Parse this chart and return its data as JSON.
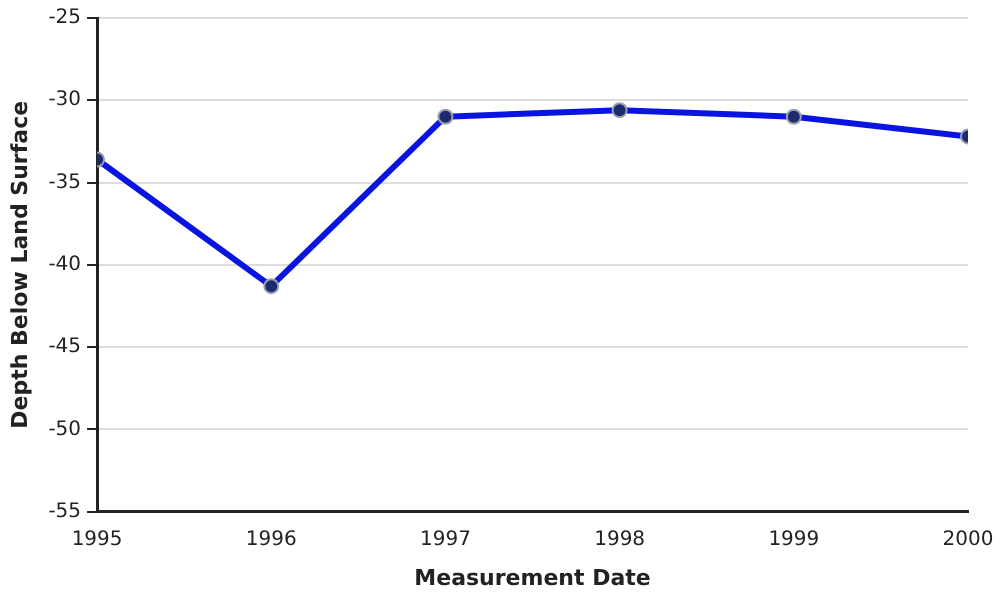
{
  "chart_data": {
    "type": "line",
    "xlabel": "Measurement Date",
    "ylabel": "Depth Below Land Surface",
    "x": [
      1995,
      1996,
      1997,
      1998,
      1999,
      2000
    ],
    "series": [
      {
        "color": "#0a14e0",
        "values": [
          -33.6,
          -41.3,
          -31,
          -30.6,
          -31,
          -32.2
        ]
      }
    ],
    "xlim": [
      1995,
      2000
    ],
    "xticks": [
      1995,
      1996,
      1997,
      1998,
      1999,
      2000
    ],
    "ylim": [
      -55,
      -25
    ],
    "yticks": [
      -55,
      -50,
      -45,
      -40,
      -35,
      -30,
      -25
    ],
    "grid": "y",
    "legend": false,
    "marker": "circle",
    "line_style": "solid"
  }
}
